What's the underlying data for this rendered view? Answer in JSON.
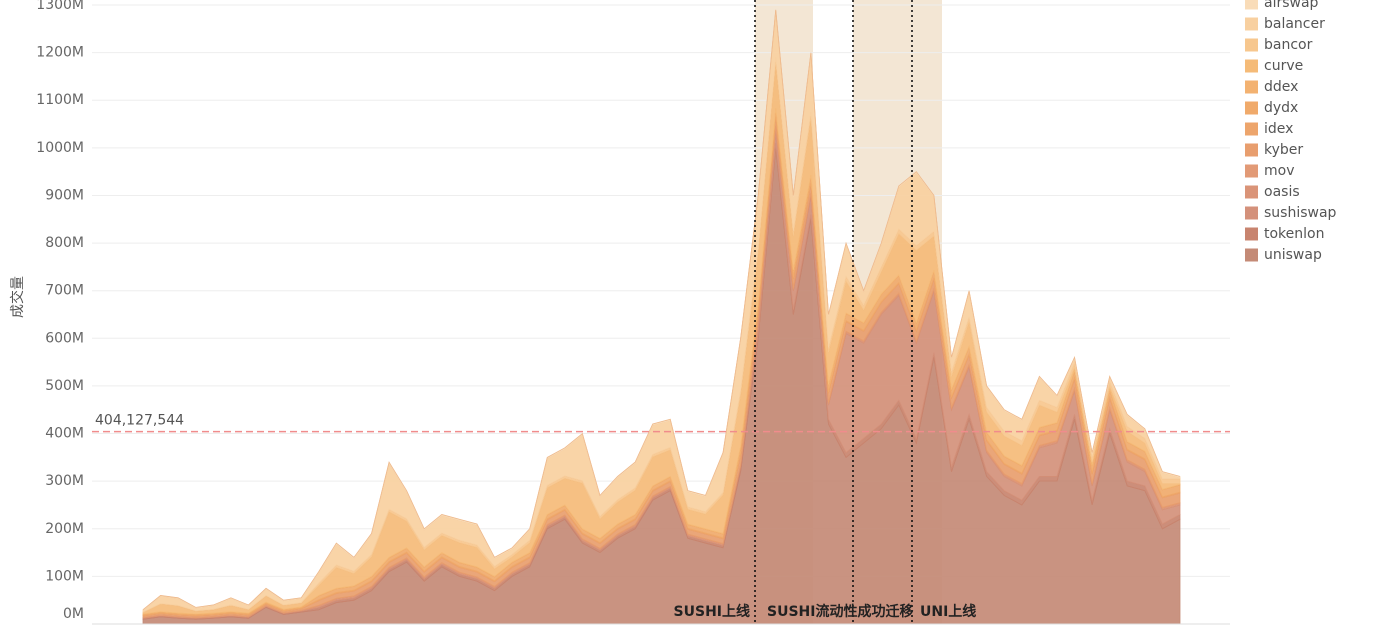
{
  "chart_data": {
    "type": "stacked_area",
    "y_label": "成交量",
    "ylim": [
      0,
      1300
    ],
    "yticks": [
      {
        "value": 0,
        "label": "0M"
      },
      {
        "value": 100,
        "label": "100M"
      },
      {
        "value": 200,
        "label": "200M"
      },
      {
        "value": 300,
        "label": "300M"
      },
      {
        "value": 400,
        "label": "400M"
      },
      {
        "value": 500,
        "label": "500M"
      },
      {
        "value": 600,
        "label": "600M"
      },
      {
        "value": 700,
        "label": "700M"
      },
      {
        "value": 800,
        "label": "800M"
      },
      {
        "value": 900,
        "label": "900M"
      },
      {
        "value": 1000,
        "label": "1000M"
      },
      {
        "value": 1100,
        "label": "1100M"
      },
      {
        "value": 1200,
        "label": "1200M"
      },
      {
        "value": 1300,
        "label": "1300M"
      }
    ],
    "grid": true,
    "legend": "right",
    "reference_line": {
      "value": 404.127544,
      "label": "404,127,544",
      "color": "#f08c8c"
    },
    "annotations": [
      {
        "text": "SUSHI上线"
      },
      {
        "text": "SUSHI流动性成功迁移"
      },
      {
        "text": "UNI上线"
      }
    ],
    "series": [
      {
        "name": "airswap",
        "color": "#f9dcb8",
        "values": [
          1,
          1,
          1,
          1,
          1,
          1,
          1,
          1,
          1,
          1,
          2,
          2,
          2,
          2,
          2,
          2,
          2,
          2,
          2,
          2,
          2,
          2,
          2,
          2,
          2,
          2,
          2,
          2,
          2,
          2,
          2,
          2,
          2,
          2,
          2,
          2,
          2,
          2,
          2,
          2,
          2,
          2,
          2,
          2,
          2,
          2,
          2,
          2,
          2,
          2,
          2,
          2,
          2,
          2,
          2,
          2,
          2,
          2,
          2,
          2
        ]
      },
      {
        "name": "balancer",
        "color": "#f8d0a0",
        "values": [
          4,
          16,
          15,
          6,
          8,
          14,
          8,
          14,
          9,
          9,
          22,
          44,
          27,
          42,
          97,
          57,
          37,
          37,
          42,
          42,
          17,
          12,
          22,
          57,
          57,
          97,
          42,
          47,
          52,
          62,
          57,
          32,
          32,
          82,
          108,
          108,
          98,
          73,
          123,
          68,
          68,
          28,
          48,
          88,
          153,
          73,
          28,
          53,
          43,
          43,
          43,
          48,
          23,
          8,
          8,
          8,
          23,
          18,
          13,
          3
        ]
      },
      {
        "name": "bancor",
        "color": "#f7c78e",
        "values": [
          1,
          1,
          1,
          1,
          1,
          1,
          1,
          1,
          1,
          1,
          5,
          5,
          5,
          5,
          5,
          5,
          5,
          5,
          5,
          5,
          5,
          5,
          5,
          5,
          5,
          5,
          5,
          5,
          5,
          5,
          5,
          5,
          5,
          5,
          10,
          10,
          10,
          10,
          10,
          10,
          10,
          10,
          10,
          10,
          10,
          10,
          10,
          10,
          10,
          10,
          10,
          10,
          10,
          10,
          10,
          10,
          10,
          10,
          10,
          10
        ]
      },
      {
        "name": "curve",
        "color": "#f5bb78",
        "values": [
          3,
          16,
          15,
          6,
          7,
          13,
          7,
          13,
          8,
          8,
          21,
          44,
          26,
          41,
          96,
          56,
          36,
          36,
          41,
          41,
          16,
          11,
          21,
          56,
          56,
          96,
          41,
          46,
          51,
          61,
          56,
          31,
          31,
          81,
          107,
          107,
          97,
          72,
          122,
          67,
          67,
          27,
          47,
          87,
          152,
          72,
          27,
          52,
          42,
          42,
          42,
          47,
          22,
          7,
          7,
          7,
          22,
          17,
          12,
          2
        ]
      },
      {
        "name": "ddex",
        "color": "#f3b271",
        "values": [
          1,
          1,
          1,
          1,
          1,
          1,
          1,
          1,
          1,
          1,
          1,
          1,
          1,
          1,
          1,
          1,
          1,
          1,
          1,
          1,
          1,
          1,
          1,
          1,
          1,
          1,
          1,
          1,
          1,
          1,
          1,
          1,
          1,
          1,
          1,
          1,
          1,
          1,
          1,
          1,
          1,
          1,
          1,
          1,
          1,
          1,
          1,
          1,
          1,
          1,
          1,
          1,
          1,
          1,
          1,
          1,
          1,
          1,
          1,
          1
        ]
      },
      {
        "name": "dydx",
        "color": "#f0aa6b",
        "values": [
          2,
          2,
          2,
          2,
          2,
          2,
          2,
          2,
          2,
          2,
          8,
          8,
          8,
          8,
          8,
          8,
          8,
          8,
          8,
          8,
          8,
          8,
          8,
          8,
          8,
          8,
          8,
          8,
          8,
          8,
          8,
          8,
          8,
          8,
          15,
          15,
          15,
          15,
          15,
          15,
          15,
          15,
          15,
          15,
          15,
          15,
          15,
          15,
          15,
          15,
          15,
          15,
          15,
          15,
          15,
          15,
          15,
          15,
          15,
          15
        ]
      },
      {
        "name": "idex",
        "color": "#eda56c",
        "values": [
          1,
          1,
          1,
          1,
          1,
          1,
          1,
          1,
          1,
          1,
          2,
          2,
          2,
          2,
          2,
          2,
          2,
          2,
          2,
          2,
          2,
          2,
          2,
          2,
          2,
          2,
          2,
          2,
          2,
          2,
          2,
          2,
          2,
          2,
          2,
          2,
          2,
          2,
          2,
          2,
          2,
          2,
          2,
          2,
          2,
          2,
          2,
          2,
          2,
          2,
          2,
          2,
          2,
          2,
          2,
          2,
          2,
          2,
          2,
          2
        ]
      },
      {
        "name": "kyber",
        "color": "#e89e6e",
        "values": [
          3,
          3,
          3,
          3,
          3,
          3,
          3,
          3,
          3,
          3,
          10,
          10,
          10,
          10,
          10,
          10,
          10,
          10,
          10,
          10,
          10,
          10,
          10,
          10,
          10,
          10,
          10,
          10,
          10,
          10,
          10,
          10,
          10,
          10,
          20,
          20,
          20,
          20,
          20,
          20,
          20,
          20,
          20,
          20,
          20,
          20,
          20,
          20,
          20,
          20,
          20,
          20,
          20,
          20,
          20,
          20,
          20,
          20,
          20,
          20
        ]
      },
      {
        "name": "mov",
        "color": "#e29a76",
        "values": [
          1,
          1,
          1,
          1,
          1,
          1,
          1,
          1,
          1,
          1,
          1,
          1,
          1,
          1,
          1,
          1,
          1,
          1,
          1,
          1,
          1,
          1,
          1,
          1,
          1,
          1,
          1,
          1,
          1,
          1,
          1,
          1,
          1,
          1,
          2,
          2,
          2,
          2,
          2,
          2,
          2,
          2,
          2,
          2,
          2,
          2,
          2,
          2,
          2,
          2,
          2,
          2,
          2,
          2,
          2,
          2,
          2,
          2,
          2,
          2
        ]
      },
      {
        "name": "oasis",
        "color": "#da9478",
        "values": [
          1,
          1,
          1,
          1,
          1,
          1,
          1,
          1,
          1,
          1,
          3,
          3,
          3,
          3,
          3,
          3,
          3,
          3,
          3,
          3,
          3,
          3,
          3,
          3,
          3,
          3,
          3,
          3,
          3,
          3,
          3,
          3,
          3,
          3,
          3,
          3,
          3,
          3,
          3,
          3,
          3,
          3,
          3,
          3,
          3,
          3,
          3,
          3,
          3,
          3,
          3,
          3,
          3,
          3,
          3,
          3,
          3,
          3,
          3,
          3
        ]
      },
      {
        "name": "sushiswap",
        "color": "#d4917b",
        "values": [
          0,
          0,
          0,
          0,
          0,
          0,
          0,
          0,
          0,
          0,
          0,
          0,
          0,
          0,
          0,
          0,
          0,
          0,
          0,
          0,
          0,
          0,
          0,
          0,
          0,
          0,
          0,
          0,
          0,
          0,
          0,
          0,
          0,
          0,
          0,
          20,
          30,
          40,
          40,
          30,
          250,
          200,
          230,
          220,
          200,
          130,
          120,
          100,
          40,
          30,
          30,
          60,
          70,
          50,
          30,
          40,
          40,
          30,
          30,
          20
        ]
      },
      {
        "name": "tokenlon",
        "color": "#c8846f",
        "values": [
          2,
          2,
          2,
          2,
          2,
          2,
          2,
          2,
          2,
          2,
          5,
          5,
          5,
          5,
          5,
          5,
          5,
          5,
          5,
          5,
          5,
          5,
          5,
          5,
          5,
          5,
          5,
          5,
          5,
          5,
          5,
          5,
          5,
          5,
          10,
          10,
          10,
          10,
          10,
          10,
          10,
          10,
          10,
          10,
          10,
          10,
          10,
          10,
          10,
          10,
          10,
          10,
          10,
          10,
          10,
          10,
          10,
          10,
          10,
          10
        ]
      },
      {
        "name": "uniswap",
        "color": "#c48a76",
        "values": [
          10,
          15,
          12,
          10,
          12,
          15,
          12,
          35,
          20,
          25,
          30,
          45,
          50,
          70,
          110,
          130,
          90,
          120,
          100,
          90,
          70,
          100,
          120,
          200,
          220,
          170,
          150,
          180,
          200,
          260,
          280,
          180,
          170,
          160,
          320,
          600,
          1000,
          650,
          850,
          420,
          350,
          380,
          410,
          460,
          380,
          560,
          320,
          430,
          310,
          270,
          250,
          300,
          300,
          430,
          250,
          400,
          290,
          280,
          200,
          220
        ]
      }
    ]
  }
}
